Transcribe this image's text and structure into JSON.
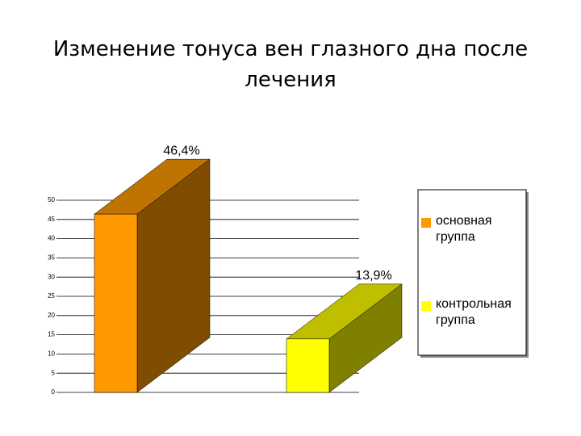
{
  "chart_data": {
    "type": "bar3d",
    "title": "Изменение тонуса вен глазного дна после лечения",
    "categories": [
      null
    ],
    "series": [
      {
        "name": "основная группа",
        "color": "#ff9900",
        "values": [
          46.4
        ],
        "value_labels": [
          "46,4%"
        ]
      },
      {
        "name": "контрольная группа",
        "color": "#ffff00",
        "values": [
          13.9
        ],
        "value_labels": [
          "13,9%"
        ]
      }
    ],
    "ylim": [
      0,
      50
    ],
    "yticks": [
      0,
      5,
      10,
      15,
      20,
      25,
      30,
      35,
      40,
      45,
      50
    ],
    "grid": true
  }
}
